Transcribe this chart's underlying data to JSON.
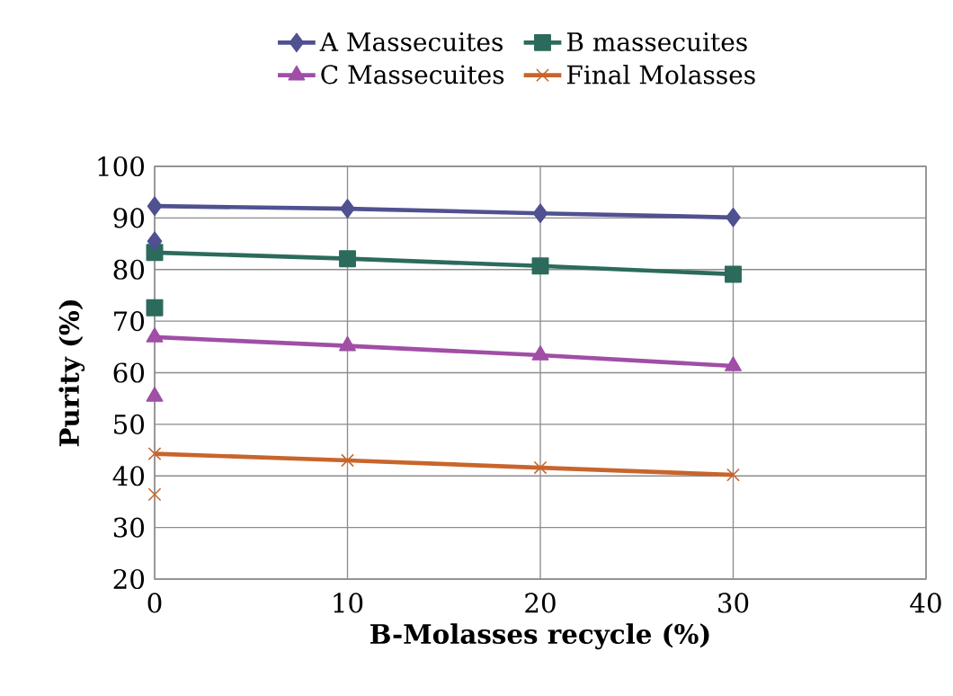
{
  "chart_data": {
    "type": "line",
    "xlabel": "B-Molasses recycle (%)",
    "ylabel": "Purity (%)",
    "xlim": [
      0,
      40
    ],
    "xticks": [
      0,
      10,
      20,
      30,
      40
    ],
    "ylim": [
      20,
      100
    ],
    "yticks": [
      20,
      30,
      40,
      50,
      60,
      70,
      80,
      90,
      100
    ],
    "grid": true,
    "legend": "top",
    "line_style": "solid",
    "series": [
      {
        "name": "A Massecuites",
        "color": "#4f5190",
        "marker": "diamond",
        "x": [
          0,
          10,
          20,
          30
        ],
        "values": [
          92.3,
          91.8,
          90.9,
          90.1
        ]
      },
      {
        "name": "B massecuites",
        "color": "#2c6b5c",
        "marker": "square",
        "x": [
          0,
          10,
          20,
          30
        ],
        "values": [
          83.3,
          82.1,
          80.7,
          79.1
        ]
      },
      {
        "name": "C Massecuites",
        "color": "#a04ea6",
        "marker": "triangle",
        "x": [
          0,
          10,
          20,
          30
        ],
        "values": [
          66.9,
          65.2,
          63.4,
          61.3
        ]
      },
      {
        "name": "Final Molasses",
        "color": "#c8652c",
        "marker": "cross",
        "x": [
          0,
          10,
          20,
          30
        ],
        "values": [
          44.3,
          43.0,
          41.6,
          40.2
        ]
      },
      {
        "type": "scatter",
        "color": "#4f5190",
        "marker": "diamond",
        "x": [
          0
        ],
        "values": [
          85.5
        ]
      },
      {
        "type": "scatter",
        "color": "#2c6b5c",
        "marker": "square",
        "x": [
          0
        ],
        "values": [
          72.6
        ]
      },
      {
        "type": "scatter",
        "color": "#a04ea6",
        "marker": "triangle",
        "x": [
          0
        ],
        "values": [
          55.4
        ]
      },
      {
        "type": "scatter",
        "color": "#c8652c",
        "marker": "cross",
        "x": [
          0
        ],
        "values": [
          36.4
        ]
      }
    ]
  }
}
